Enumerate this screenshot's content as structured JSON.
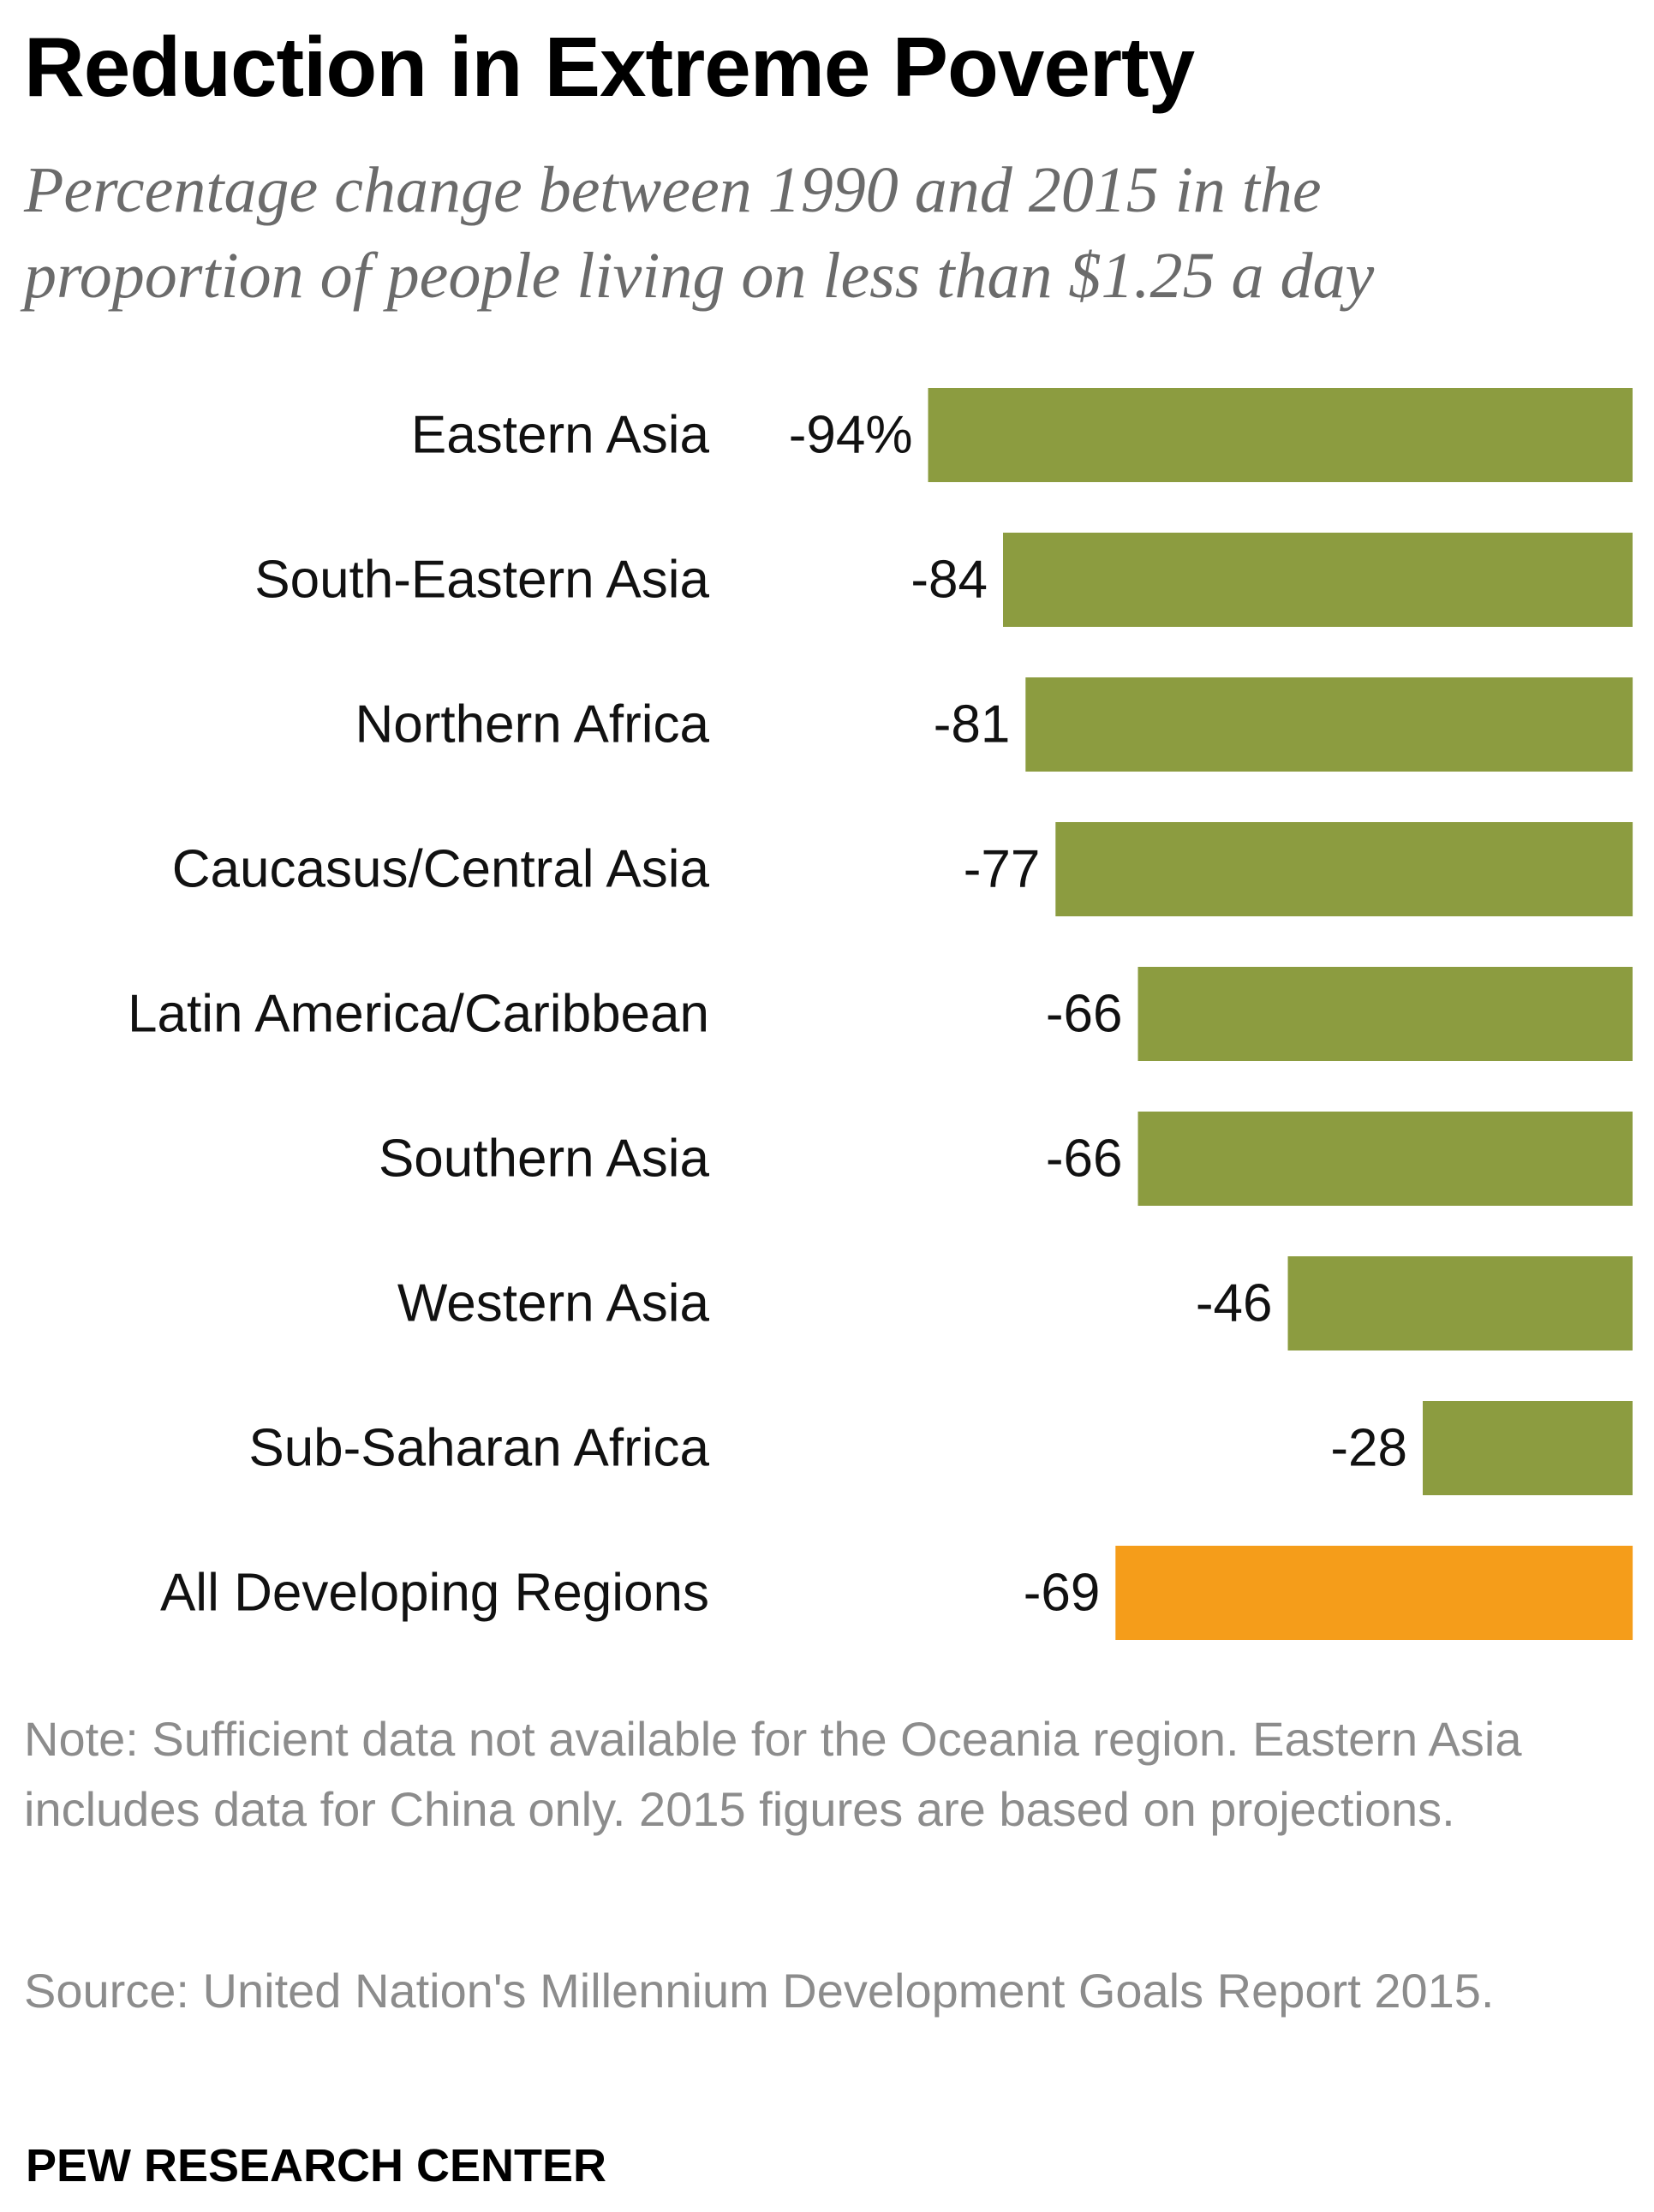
{
  "chart_data": {
    "type": "bar",
    "orientation": "horizontal",
    "title": "Reduction in Extreme Poverty",
    "subtitle": "Percentage change between 1990 and 2015 in the proportion of people living on less than $1.25 a day",
    "categories": [
      "Eastern Asia",
      "South-Eastern Asia",
      "Northern Africa",
      "Caucasus/Central Asia",
      "Latin America/Caribbean",
      "Southern Asia",
      "Western Asia",
      "Sub-Saharan Africa",
      "All Developing Regions"
    ],
    "values": [
      -94,
      -84,
      -81,
      -77,
      -66,
      -66,
      -46,
      -28,
      -69
    ],
    "data_labels": [
      "-94%",
      "-84",
      "-81",
      "-77",
      "-66",
      "-66",
      "-46",
      "-28",
      "-69"
    ],
    "xlim": [
      -100,
      0
    ],
    "grid": false,
    "legend": "none",
    "colors": {
      "region": "#8c9c40",
      "total": "#f59d1a"
    },
    "note": "Note: Sufficient data not available for the Oceania region. Eastern Asia includes data for China only. 2015 figures are based on projections.",
    "source": "Source: United Nation's Millennium Development Goals Report 2015.",
    "credit": "PEW RESEARCH CENTER"
  }
}
